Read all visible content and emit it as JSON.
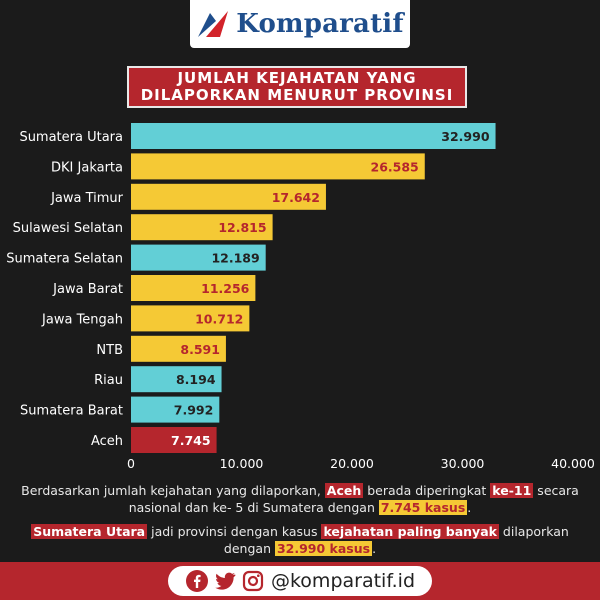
{
  "brand": {
    "name": "Komparatif"
  },
  "title": {
    "line1": "JUMLAH KEJAHATAN YANG",
    "line2": "DILAPORKAN MENURUT PROVINSI"
  },
  "chart_data": {
    "type": "bar",
    "orientation": "horizontal",
    "categories": [
      "Sumatera Utara",
      "DKI Jakarta",
      "Jawa Timur",
      "Sulawesi Selatan",
      "Sumatera Selatan",
      "Jawa Barat",
      "Jawa Tengah",
      "NTB",
      "Riau",
      "Sumatera Barat",
      "Aceh"
    ],
    "values": [
      32990,
      26585,
      17642,
      12815,
      12189,
      11256,
      10712,
      8591,
      8194,
      7992,
      7745
    ],
    "value_labels": [
      "32.990",
      "26.585",
      "17.642",
      "12.815",
      "12.189",
      "11.256",
      "10.712",
      "8.591",
      "8.194",
      "7.992",
      "7.745"
    ],
    "bar_colors": [
      "#62cfd6",
      "#f5c935",
      "#f5c935",
      "#f5c935",
      "#62cfd6",
      "#f5c935",
      "#f5c935",
      "#f5c935",
      "#62cfd6",
      "#62cfd6",
      "#b5262d"
    ],
    "label_colors": [
      "#222222",
      "#b5262d",
      "#b5262d",
      "#b5262d",
      "#222222",
      "#b5262d",
      "#b5262d",
      "#b5262d",
      "#222222",
      "#222222",
      "#ffffff"
    ],
    "xlim": [
      0,
      40000
    ],
    "xticks": [
      0,
      10000,
      20000,
      30000,
      40000
    ],
    "xtick_labels": [
      "0",
      "10.000",
      "20.000",
      "30.000",
      "40.000"
    ],
    "grid": false,
    "legend": "none"
  },
  "footer": {
    "p1_a": "Berdasarkan jumlah kejahatan yang dilaporkan, ",
    "p1_aceh": "Aceh",
    "p1_b": " berada diperingkat ",
    "p1_rank": "ke-11",
    "p1_c": " secara nasional dan ke- 5 di Sumatera dengan ",
    "p1_cases": "7.745 kasus",
    "p1_d": ".",
    "p2_prov": "Sumatera Utara",
    "p2_a": " jadi provinsi dengan kasus ",
    "p2_hl": "kejahatan paling banyak",
    "p2_b": " dilaporkan dengan ",
    "p2_cases": "32.990 kasus",
    "p2_c": "."
  },
  "social": {
    "handle": "@komparatif.id",
    "icons": [
      "facebook-icon",
      "twitter-icon",
      "instagram-icon"
    ]
  },
  "colors": {
    "background": "#1b1b1b",
    "red": "#b5262d",
    "yellow": "#f5c935",
    "teal": "#62cfd6",
    "brand_blue": "#1f4e8c"
  }
}
